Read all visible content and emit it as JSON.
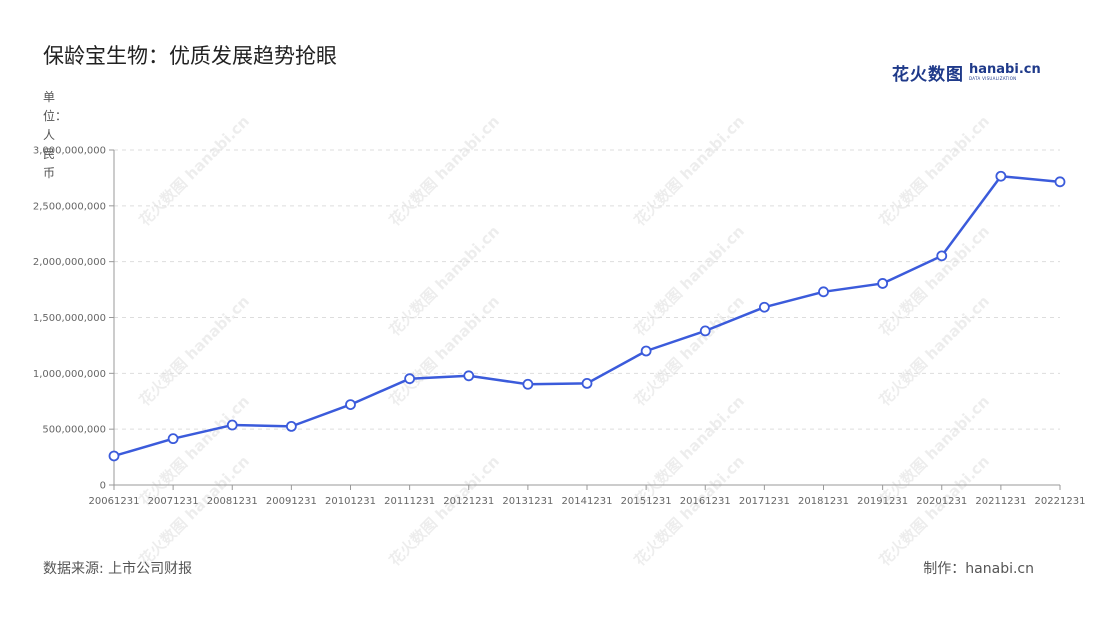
{
  "header": {
    "title": "保龄宝生物：优质发展趋势抢眼",
    "logo_cn": "花火数图",
    "logo_en": "hanabi.cn",
    "logo_sub": "DATA VISUALIZATION"
  },
  "unit_label": "单位：人民币",
  "footer": {
    "source": "数据来源: 上市公司财报",
    "credit": "制作：hanabi.cn"
  },
  "watermark_text": "花火数图 hanabi.cn",
  "colors": {
    "line": "#3b5bdb",
    "grid": "#dddddd",
    "axis": "#999999"
  },
  "chart_data": {
    "type": "line",
    "title": "保龄宝生物：优质发展趋势抢眼",
    "xlabel": "",
    "ylabel": "单位：人民币",
    "categories": [
      "20061231",
      "20071231",
      "20081231",
      "20091231",
      "20101231",
      "20111231",
      "20121231",
      "20131231",
      "20141231",
      "20151231",
      "20161231",
      "20171231",
      "20181231",
      "20191231",
      "20201231",
      "20211231",
      "20221231"
    ],
    "series": [
      {
        "values": [
          260000000,
          415000000,
          537000000,
          525000000,
          720000000,
          952000000,
          978000000,
          902000000,
          910000000,
          1200000000,
          1380000000,
          1592000000,
          1730000000,
          1805000000,
          2052000000,
          2765000000,
          2715000000
        ]
      }
    ],
    "yticks": [
      "0",
      "500,000,000",
      "1,000,000,000",
      "1,500,000,000",
      "2,000,000,000",
      "2,500,000,000",
      "3,000,000,000"
    ],
    "ylim": [
      0,
      3000000000
    ],
    "grid": true,
    "legend": "none"
  }
}
